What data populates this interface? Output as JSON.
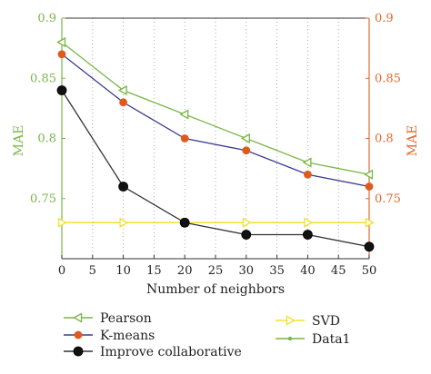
{
  "chart_data": {
    "type": "line",
    "xlabel": "Number of neighbors",
    "ylabel_left": "MAE",
    "ylabel_right": "MAE",
    "xlim": [
      0,
      50
    ],
    "ylim": [
      0.7,
      0.9
    ],
    "x_ticks": [
      0,
      5,
      10,
      15,
      20,
      25,
      30,
      35,
      40,
      45,
      50
    ],
    "y_ticks": [
      0.75,
      0.8,
      0.85,
      0.9
    ],
    "y_tick_labels_left": [
      "0.75",
      "0.8",
      "0.85",
      "0.9"
    ],
    "y_tick_labels_right": [
      "0.75",
      "0.8",
      "0.85",
      "0.9"
    ],
    "x_tick_labels": [
      "0",
      "5",
      "10",
      "15",
      "20",
      "25",
      "30",
      "35",
      "40",
      "45",
      "50"
    ],
    "grid": "vertical-dotted",
    "left_axis_color": "#7ab648",
    "right_axis_color": "#e06a2c",
    "legend_position": "bottom",
    "series": [
      {
        "name": "Pearson",
        "x": [
          0,
          10,
          20,
          30,
          40,
          50
        ],
        "values": [
          0.88,
          0.84,
          0.82,
          0.8,
          0.78,
          0.77
        ],
        "color": "#7ab648",
        "marker": "triangle-left"
      },
      {
        "name": "K-means",
        "x": [
          0,
          10,
          20,
          30,
          40,
          50
        ],
        "values": [
          0.87,
          0.83,
          0.8,
          0.79,
          0.77,
          0.76
        ],
        "color": "#3b3b8f",
        "marker": "circle",
        "marker_fill": "#e05a1c"
      },
      {
        "name": "Improve collaborative",
        "x": [
          0,
          10,
          20,
          30,
          40,
          50
        ],
        "values": [
          0.84,
          0.76,
          0.73,
          0.72,
          0.72,
          0.71
        ],
        "color": "#333333",
        "marker": "circle",
        "marker_fill": "#111111"
      },
      {
        "name": "SVD",
        "x": [
          0,
          10,
          20,
          30,
          40,
          50
        ],
        "values": [
          0.73,
          0.73,
          0.73,
          0.73,
          0.73,
          0.73
        ],
        "color": "#f0e030",
        "marker": "triangle-right"
      },
      {
        "name": "Data1",
        "x": [],
        "values": [],
        "color": "#7ab648",
        "marker": "dot"
      }
    ]
  }
}
